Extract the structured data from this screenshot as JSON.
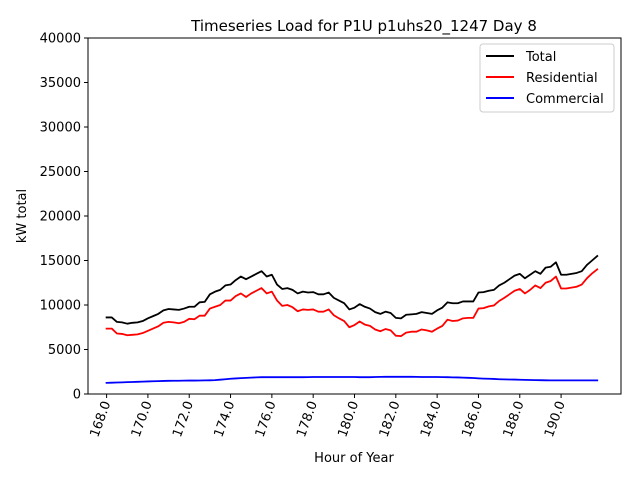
{
  "chart_data": {
    "type": "line",
    "title": "Timeseries Load for P1U p1uhs20_1247  Day 8",
    "xlabel": "Hour of Year",
    "ylabel": "kW total",
    "xlim": [
      167.1,
      192.9
    ],
    "ylim": [
      0,
      40000
    ],
    "x_ticks": [
      168,
      170,
      172,
      174,
      176,
      178,
      180,
      182,
      184,
      186,
      188,
      190
    ],
    "x_tick_labels": [
      "168.0",
      "170.0",
      "172.0",
      "174.0",
      "176.0",
      "178.0",
      "180.0",
      "182.0",
      "184.0",
      "186.0",
      "188.0",
      "190.0"
    ],
    "y_ticks": [
      0,
      5000,
      10000,
      15000,
      20000,
      25000,
      30000,
      35000,
      40000
    ],
    "y_tick_labels": [
      "0",
      "5000",
      "10000",
      "15000",
      "20000",
      "25000",
      "30000",
      "35000",
      "40000"
    ],
    "legend_position": "top-right",
    "x_start": 168.0,
    "x_step": 0.25,
    "series": [
      {
        "name": "Total",
        "color": "#000000",
        "values": [
          8600,
          8600,
          8100,
          8050,
          7900,
          8000,
          8050,
          8200,
          8500,
          8750,
          9000,
          9400,
          9550,
          9500,
          9450,
          9600,
          9800,
          9800,
          10300,
          10350,
          11200,
          11500,
          11700,
          12200,
          12300,
          12800,
          13200,
          12900,
          13200,
          13500,
          13800,
          13200,
          13400,
          12300,
          11800,
          11900,
          11700,
          11300,
          11500,
          11400,
          11450,
          11200,
          11200,
          11400,
          10800,
          10500,
          10200,
          9500,
          9700,
          10100,
          9800,
          9600,
          9200,
          9000,
          9250,
          9100,
          8550,
          8500,
          8900,
          8950,
          9000,
          9200,
          9100,
          9000,
          9400,
          9700,
          10300,
          10200,
          10200,
          10400,
          10400,
          10400,
          11400,
          11450,
          11600,
          11700,
          12200,
          12500,
          12900,
          13300,
          13500,
          13000,
          13400,
          13800,
          13500,
          14200,
          14300,
          14800,
          13400,
          13400,
          13500,
          13600,
          13800,
          14500,
          15000,
          15500
        ]
      },
      {
        "name": "Residential",
        "color": "#ff0000",
        "values": [
          7350,
          7350,
          6800,
          6750,
          6600,
          6650,
          6700,
          6850,
          7100,
          7350,
          7600,
          8000,
          8100,
          8050,
          7950,
          8100,
          8450,
          8400,
          8800,
          8800,
          9600,
          9800,
          10000,
          10500,
          10500,
          11000,
          11300,
          10900,
          11300,
          11600,
          11900,
          11300,
          11500,
          10500,
          9900,
          10000,
          9750,
          9300,
          9500,
          9450,
          9500,
          9250,
          9250,
          9500,
          8850,
          8500,
          8200,
          7500,
          7750,
          8150,
          7800,
          7650,
          7250,
          7050,
          7300,
          7150,
          6550,
          6500,
          6900,
          7000,
          7000,
          7250,
          7150,
          7000,
          7350,
          7650,
          8350,
          8200,
          8250,
          8500,
          8550,
          8550,
          9600,
          9650,
          9850,
          9950,
          10450,
          10800,
          11200,
          11600,
          11800,
          11300,
          11700,
          12200,
          11900,
          12500,
          12700,
          13200,
          11850,
          11850,
          11950,
          12050,
          12300,
          13000,
          13550,
          14000
        ]
      },
      {
        "name": "Commercial",
        "color": "#0000ff",
        "values": [
          1250,
          1270,
          1290,
          1310,
          1330,
          1350,
          1370,
          1390,
          1410,
          1430,
          1450,
          1470,
          1480,
          1490,
          1490,
          1500,
          1510,
          1510,
          1520,
          1530,
          1540,
          1560,
          1610,
          1660,
          1710,
          1750,
          1780,
          1810,
          1840,
          1870,
          1890,
          1890,
          1890,
          1890,
          1890,
          1890,
          1890,
          1890,
          1890,
          1900,
          1910,
          1910,
          1910,
          1910,
          1910,
          1910,
          1910,
          1910,
          1910,
          1890,
          1890,
          1890,
          1910,
          1920,
          1930,
          1930,
          1930,
          1930,
          1930,
          1930,
          1920,
          1910,
          1910,
          1910,
          1910,
          1900,
          1890,
          1870,
          1860,
          1840,
          1820,
          1800,
          1760,
          1730,
          1710,
          1690,
          1660,
          1640,
          1630,
          1620,
          1600,
          1590,
          1570,
          1560,
          1550,
          1540,
          1530,
          1530,
          1530,
          1530,
          1530,
          1530,
          1530,
          1530,
          1530,
          1530
        ]
      }
    ]
  }
}
